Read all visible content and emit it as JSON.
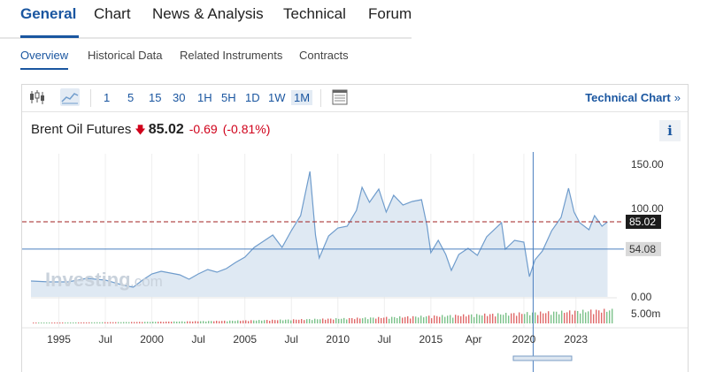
{
  "top_tabs": [
    "General",
    "Chart",
    "News & Analysis",
    "Technical",
    "Forum"
  ],
  "sub_tabs": [
    "Overview",
    "Historical Data",
    "Related Instruments",
    "Contracts"
  ],
  "toolbar": {
    "icons": [
      "candlestick-icon",
      "area-chart-icon"
    ],
    "intervals": [
      "1",
      "5",
      "15",
      "30",
      "1H",
      "5H",
      "1D",
      "1W",
      "1M"
    ],
    "selected_interval": "1M",
    "table_icon": "table-icon",
    "technical_chart_label": "Technical Chart",
    "technical_chart_chevron": "»"
  },
  "instrument": {
    "name": "Brent Oil Futures",
    "direction_icon": "down-arrow-icon",
    "price": "85.02",
    "change": "-0.69",
    "change_pct": "(-0.81%)",
    "info_label": "i"
  },
  "watermark": {
    "brand": "Investing",
    "suffix": ".com"
  },
  "colors": {
    "accent": "#1a56a0",
    "negative": "#d0021b",
    "line": "#6f9ccc",
    "area": "#dfe9f3",
    "volume_red": "#e06a6a",
    "volume_green": "#7cc28a"
  },
  "chart_data": {
    "type": "area",
    "x_ticks": [
      "1995",
      "Jul",
      "2000",
      "Jul",
      "2005",
      "Jul",
      "2010",
      "Jul",
      "2015",
      "Apr",
      "2020",
      "2023"
    ],
    "y_ticks": [
      "150.00",
      "100.00",
      "0.00"
    ],
    "volume_tick": "5.00m",
    "current_price_label": "85.02",
    "crosshair_price_label": "54.08",
    "ylim": [
      0,
      150
    ],
    "series": [
      {
        "values": [
          [
            1993.5,
            18
          ],
          [
            1994.5,
            17
          ],
          [
            1995.5,
            17
          ],
          [
            1996.5,
            21
          ],
          [
            1997.5,
            19
          ],
          [
            1998.5,
            13
          ],
          [
            1999.0,
            11
          ],
          [
            1999.5,
            19
          ],
          [
            2000.0,
            26
          ],
          [
            2000.5,
            29
          ],
          [
            2001.5,
            25
          ],
          [
            2002.0,
            20
          ],
          [
            2002.5,
            26
          ],
          [
            2003.0,
            31
          ],
          [
            2003.5,
            28
          ],
          [
            2004.0,
            32
          ],
          [
            2004.5,
            39
          ],
          [
            2005.0,
            45
          ],
          [
            2005.5,
            56
          ],
          [
            2006.0,
            63
          ],
          [
            2006.5,
            70
          ],
          [
            2007.0,
            56
          ],
          [
            2007.5,
            75
          ],
          [
            2008.0,
            92
          ],
          [
            2008.5,
            142
          ],
          [
            2008.8,
            70
          ],
          [
            2009.0,
            44
          ],
          [
            2009.5,
            69
          ],
          [
            2010.0,
            78
          ],
          [
            2010.5,
            80
          ],
          [
            2011.0,
            98
          ],
          [
            2011.3,
            124
          ],
          [
            2011.7,
            107
          ],
          [
            2012.2,
            122
          ],
          [
            2012.6,
            96
          ],
          [
            2013.0,
            115
          ],
          [
            2013.5,
            104
          ],
          [
            2014.0,
            108
          ],
          [
            2014.5,
            110
          ],
          [
            2014.8,
            80
          ],
          [
            2015.0,
            50
          ],
          [
            2015.4,
            64
          ],
          [
            2015.8,
            48
          ],
          [
            2016.1,
            30
          ],
          [
            2016.5,
            48
          ],
          [
            2017.0,
            55
          ],
          [
            2017.5,
            47
          ],
          [
            2018.0,
            68
          ],
          [
            2018.8,
            84
          ],
          [
            2019.0,
            54
          ],
          [
            2019.5,
            64
          ],
          [
            2020.0,
            62
          ],
          [
            2020.3,
            23
          ],
          [
            2020.6,
            42
          ],
          [
            2021.0,
            52
          ],
          [
            2021.5,
            75
          ],
          [
            2022.0,
            90
          ],
          [
            2022.4,
            123
          ],
          [
            2022.7,
            96
          ],
          [
            2023.0,
            84
          ],
          [
            2023.5,
            76
          ],
          [
            2023.8,
            92
          ],
          [
            2024.2,
            80
          ],
          [
            2024.5,
            85
          ]
        ]
      }
    ]
  }
}
